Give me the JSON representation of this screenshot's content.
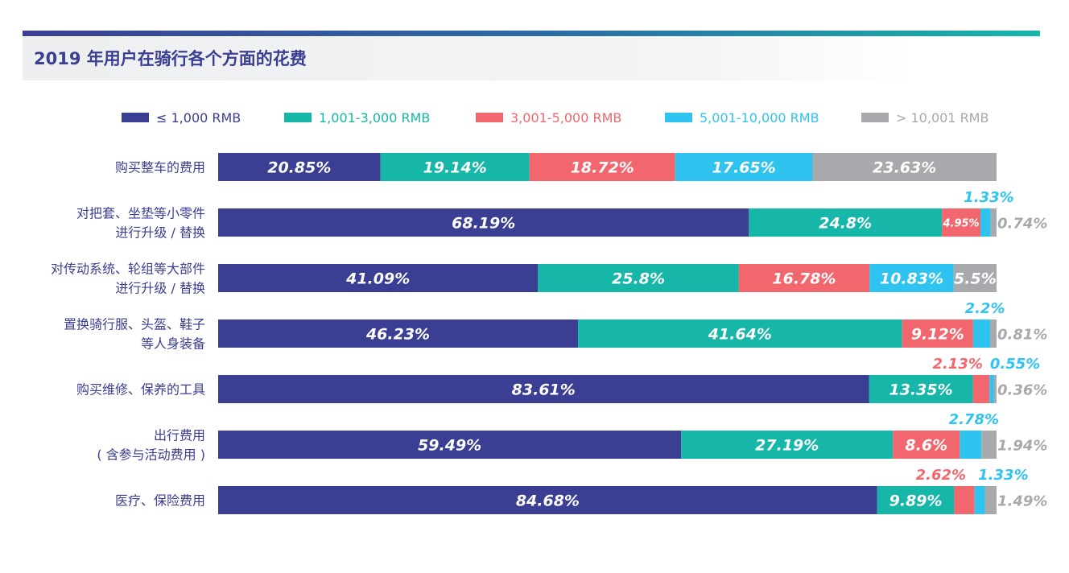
{
  "title": "2019 年用户在骑行各个方面的花费",
  "colors": {
    "accent": "#3b3f93",
    "categories": [
      "#3b3f93",
      "#16b6a8",
      "#f1676d",
      "#2ec4ef",
      "#a7a9ac"
    ]
  },
  "legend": [
    {
      "label": "≤ 1,000 RMB",
      "color": "#3b3f93",
      "text_color": "#3b3f93"
    },
    {
      "label": "1,001-3,000 RMB",
      "color": "#16b6a8",
      "text_color": "#16b6a8"
    },
    {
      "label": "3,001-5,000 RMB",
      "color": "#f1676d",
      "text_color": "#f1676d"
    },
    {
      "label": "5,001-10,000 RMB",
      "color": "#2ec4ef",
      "text_color": "#2ec4ef"
    },
    {
      "label": "> 10,001 RMB",
      "color": "#a7a9ac",
      "text_color": "#a7a9ac"
    }
  ],
  "chart_data": {
    "type": "bar",
    "orientation": "horizontal",
    "stacked": true,
    "title": "2019 年用户在骑行各个方面的花费",
    "legend_position": "top",
    "grid": false,
    "categories": [
      [
        "购买整车的费用"
      ],
      [
        "对把套、坐垫等小零件",
        "进行升级 / 替换"
      ],
      [
        "对传动系统、轮组等大部件",
        "进行升级 / 替换"
      ],
      [
        "置换骑行服、头盔、鞋子",
        "等人身装备"
      ],
      [
        "购买维修、保养的工具"
      ],
      [
        "出行费用",
        "( 含参与活动费用 )"
      ],
      [
        "医疗、保险费用"
      ]
    ],
    "series": [
      {
        "name": "≤ 1,000 RMB",
        "values": [
          20.85,
          68.19,
          41.09,
          46.23,
          83.61,
          59.49,
          84.68
        ],
        "labels": [
          "20.85%",
          "68.19%",
          "41.09%",
          "46.23%",
          "83.61%",
          "59.49%",
          "84.68%"
        ]
      },
      {
        "name": "1,001-3,000 RMB",
        "values": [
          19.14,
          24.8,
          25.8,
          41.64,
          13.35,
          27.19,
          9.89
        ],
        "labels": [
          "19.14%",
          "24.8%",
          "25.8%",
          "41.64%",
          "13.35%",
          "27.19%",
          "9.89%"
        ]
      },
      {
        "name": "3,001-5,000 RMB",
        "values": [
          18.72,
          4.95,
          16.78,
          9.12,
          2.13,
          8.6,
          2.62
        ],
        "labels": [
          "18.72%",
          "4.95%",
          "16.78%",
          "9.12%",
          "2.13%",
          "8.6%",
          "2.62%"
        ]
      },
      {
        "name": "5,001-10,000 RMB",
        "values": [
          17.65,
          1.33,
          10.83,
          2.2,
          0.55,
          2.78,
          1.33
        ],
        "labels": [
          "17.65%",
          "1.33%",
          "10.83%",
          "2.2%",
          "0.55%",
          "2.78%",
          "1.33%"
        ]
      },
      {
        "name": "> 10,001 RMB",
        "values": [
          23.63,
          0.74,
          5.5,
          0.81,
          0.36,
          1.94,
          1.49
        ],
        "labels": [
          "23.63%",
          "0.74%",
          "5.5%",
          "0.81%",
          "0.36%",
          "1.94%",
          "1.49%"
        ]
      }
    ]
  }
}
